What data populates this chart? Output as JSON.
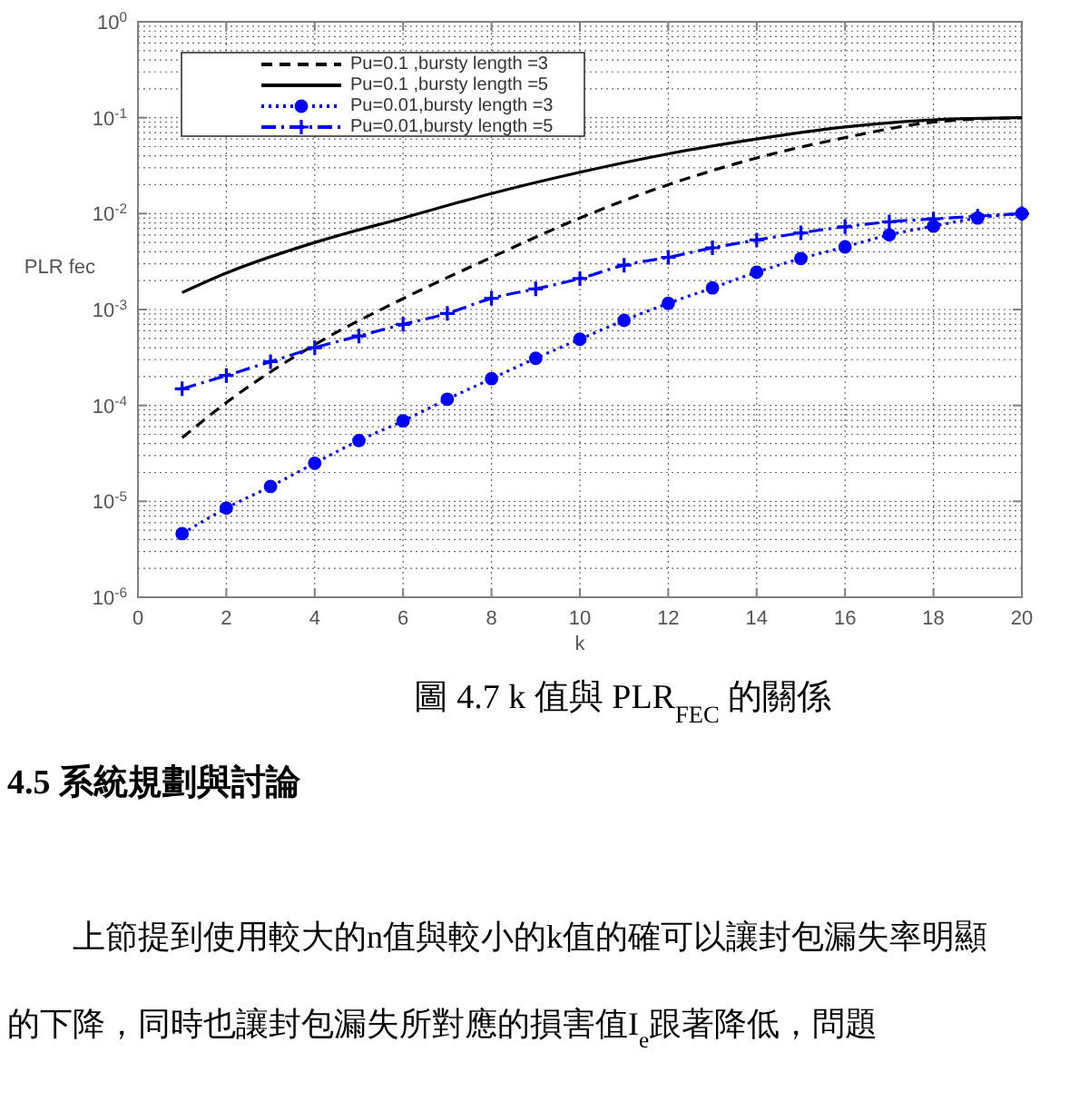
{
  "chart_data": {
    "type": "line",
    "title": "圖 4.7 k 值與 PLR$_{FEC}$ 的關係",
    "xlabel": "k",
    "ylabel": "PLR fec",
    "x": [
      1,
      2,
      3,
      4,
      5,
      6,
      7,
      8,
      9,
      10,
      11,
      12,
      13,
      14,
      15,
      16,
      17,
      18,
      19,
      20
    ],
    "series": [
      {
        "name": "Pu=0.1 ,bursty length =3",
        "color": "#000000",
        "line_style": "dashed",
        "marker": "none",
        "x": [
          1,
          2,
          4,
          6,
          8,
          10,
          12,
          14,
          16,
          18,
          20
        ],
        "values": [
          4.6e-05,
          0.000107,
          0.00043,
          0.0013,
          0.0035,
          0.009,
          0.02,
          0.038,
          0.062,
          0.09,
          0.1
        ]
      },
      {
        "name": "Pu=0.1 ,bursty length =5",
        "color": "#000000",
        "line_style": "solid",
        "marker": "none",
        "x": [
          1,
          2,
          4,
          6,
          8,
          10,
          12,
          14,
          16,
          18,
          20
        ],
        "values": [
          0.0015,
          0.0024,
          0.005,
          0.009,
          0.0162,
          0.027,
          0.042,
          0.06,
          0.08,
          0.095,
          0.1
        ]
      },
      {
        "name": "Pu=0.01,bursty length =3",
        "color": "#0000ff",
        "line_style": "dotted",
        "marker": "circle",
        "values": [
          4.6e-06,
          8.5e-06,
          1.43e-05,
          2.5e-05,
          4.3e-05,
          6.9e-05,
          0.000116,
          0.00019,
          0.00031,
          0.00049,
          0.00077,
          0.00116,
          0.00168,
          0.00245,
          0.0034,
          0.0045,
          0.006,
          0.0074,
          0.009,
          0.01
        ]
      },
      {
        "name": "Pu=0.01,bursty length =5",
        "color": "#0000ff",
        "line_style": "dashdot",
        "marker": "cross",
        "values": [
          0.000149,
          0.000205,
          0.000286,
          0.0004,
          0.00053,
          0.0007,
          0.00091,
          0.00131,
          0.00164,
          0.0021,
          0.0029,
          0.0035,
          0.0044,
          0.0053,
          0.0063,
          0.0073,
          0.0082,
          0.0088,
          0.0094,
          0.01
        ]
      }
    ],
    "log": true,
    "grid": true,
    "legend": "top left",
    "xlim": [
      0,
      20
    ],
    "xticks": [
      0,
      2,
      4,
      6,
      8,
      10,
      12,
      14,
      16,
      18,
      20
    ],
    "ylim": [
      1e-06,
      1
    ],
    "yticks": [
      {
        "value": 1e-06,
        "label": "10$^{-6}$"
      },
      {
        "value": 1e-05,
        "label": "10$^{-5}$"
      },
      {
        "value": 0.0001,
        "label": "10$^{-4}$"
      },
      {
        "value": 0.001,
        "label": "10$^{-3}$"
      },
      {
        "value": 0.01,
        "label": "10$^{-2}$"
      },
      {
        "value": 0.1,
        "label": "10$^{-1}$"
      },
      {
        "value": 1,
        "label": "10$^{0}$"
      }
    ],
    "annotations": [
      "4.5 系統規劃與討論",
      "上節提到使用較大的n值與較小的k值的確可以讓封包漏失率明顯的下降，同時也讓封包漏失所對應的損害值I$_{e}$跟著降低，問題"
    ]
  }
}
